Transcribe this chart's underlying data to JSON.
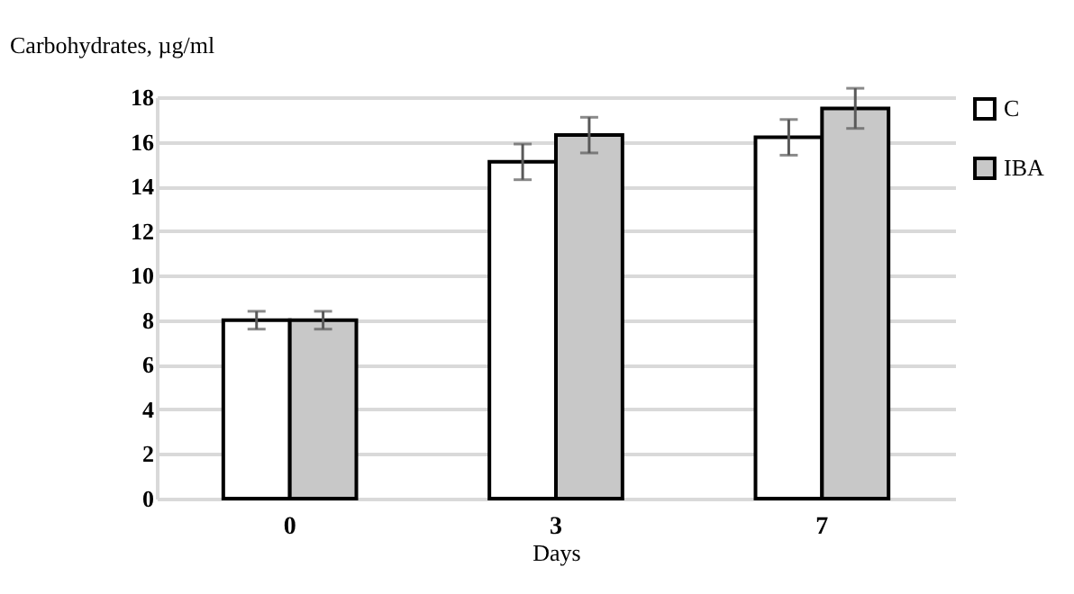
{
  "chart_data": {
    "type": "bar",
    "ylabel": "Carbohydrates, µg/ml",
    "xlabel": "Days",
    "categories": [
      "0",
      "3",
      "7"
    ],
    "series": [
      {
        "name": "C",
        "color": "#ffffff",
        "values": [
          8,
          15.1,
          16.2
        ],
        "errors": [
          0.4,
          0.8,
          0.8
        ]
      },
      {
        "name": "IBA",
        "color": "#c8c8c8",
        "values": [
          8,
          16.3,
          17.5
        ],
        "errors": [
          0.4,
          0.8,
          0.9
        ]
      }
    ],
    "ylim": [
      0,
      18
    ],
    "yticks": [
      0,
      2,
      4,
      6,
      8,
      10,
      12,
      14,
      16,
      18
    ],
    "grid": "y",
    "legend": "right"
  }
}
